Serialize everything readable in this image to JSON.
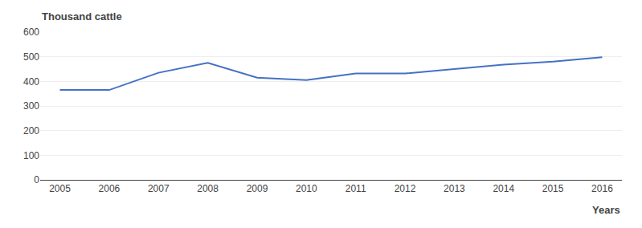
{
  "chart_data": {
    "type": "line",
    "x": [
      2005,
      2006,
      2007,
      2008,
      2009,
      2010,
      2011,
      2012,
      2013,
      2014,
      2015,
      2016
    ],
    "values": [
      365,
      365,
      435,
      475,
      415,
      405,
      432,
      432,
      450,
      468,
      480,
      498
    ],
    "color": "#4472C4",
    "xlabel": "Years",
    "ylabel": "Thousand cattle",
    "xlim": [
      2004.6,
      2016.4
    ],
    "xticks": [
      2005,
      2006,
      2007,
      2008,
      2009,
      2010,
      2011,
      2012,
      2013,
      2014,
      2015,
      2016
    ],
    "ylim": [
      0,
      600
    ],
    "yticks": [
      0,
      100,
      200,
      300,
      400,
      500,
      600
    ],
    "grid": true
  }
}
